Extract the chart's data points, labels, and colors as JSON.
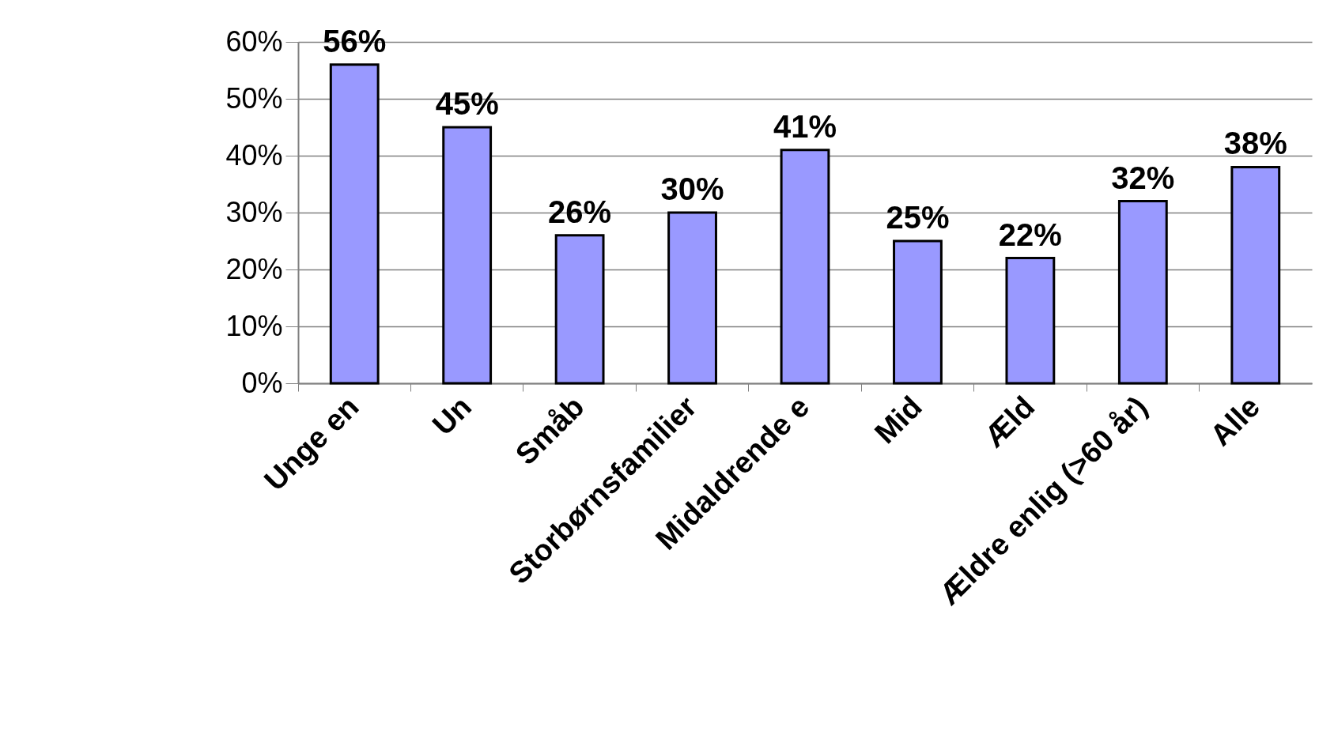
{
  "chart_data": {
    "type": "bar",
    "categories": [
      "Unge en",
      "Un",
      "Småb",
      "Storbørnsfamilier",
      "Midaldrende e",
      "Mid",
      "Æld",
      "Ældre enlig (>60 år)",
      "Alle"
    ],
    "values": [
      56,
      45,
      26,
      30,
      41,
      25,
      22,
      32,
      38
    ],
    "value_labels": [
      "56%",
      "45%",
      "26%",
      "30%",
      "41%",
      "25%",
      "22%",
      "32%",
      "38%"
    ],
    "color": "#9999ff",
    "ylim": [
      0,
      60
    ],
    "yticks": [
      {
        "value": 0,
        "label": "0%"
      },
      {
        "value": 10,
        "label": "10%"
      },
      {
        "value": 20,
        "label": "20%"
      },
      {
        "value": 30,
        "label": "30%"
      },
      {
        "value": 40,
        "label": "40%"
      },
      {
        "value": 50,
        "label": "50%"
      },
      {
        "value": 60,
        "label": "60%"
      }
    ],
    "grid": "y"
  }
}
